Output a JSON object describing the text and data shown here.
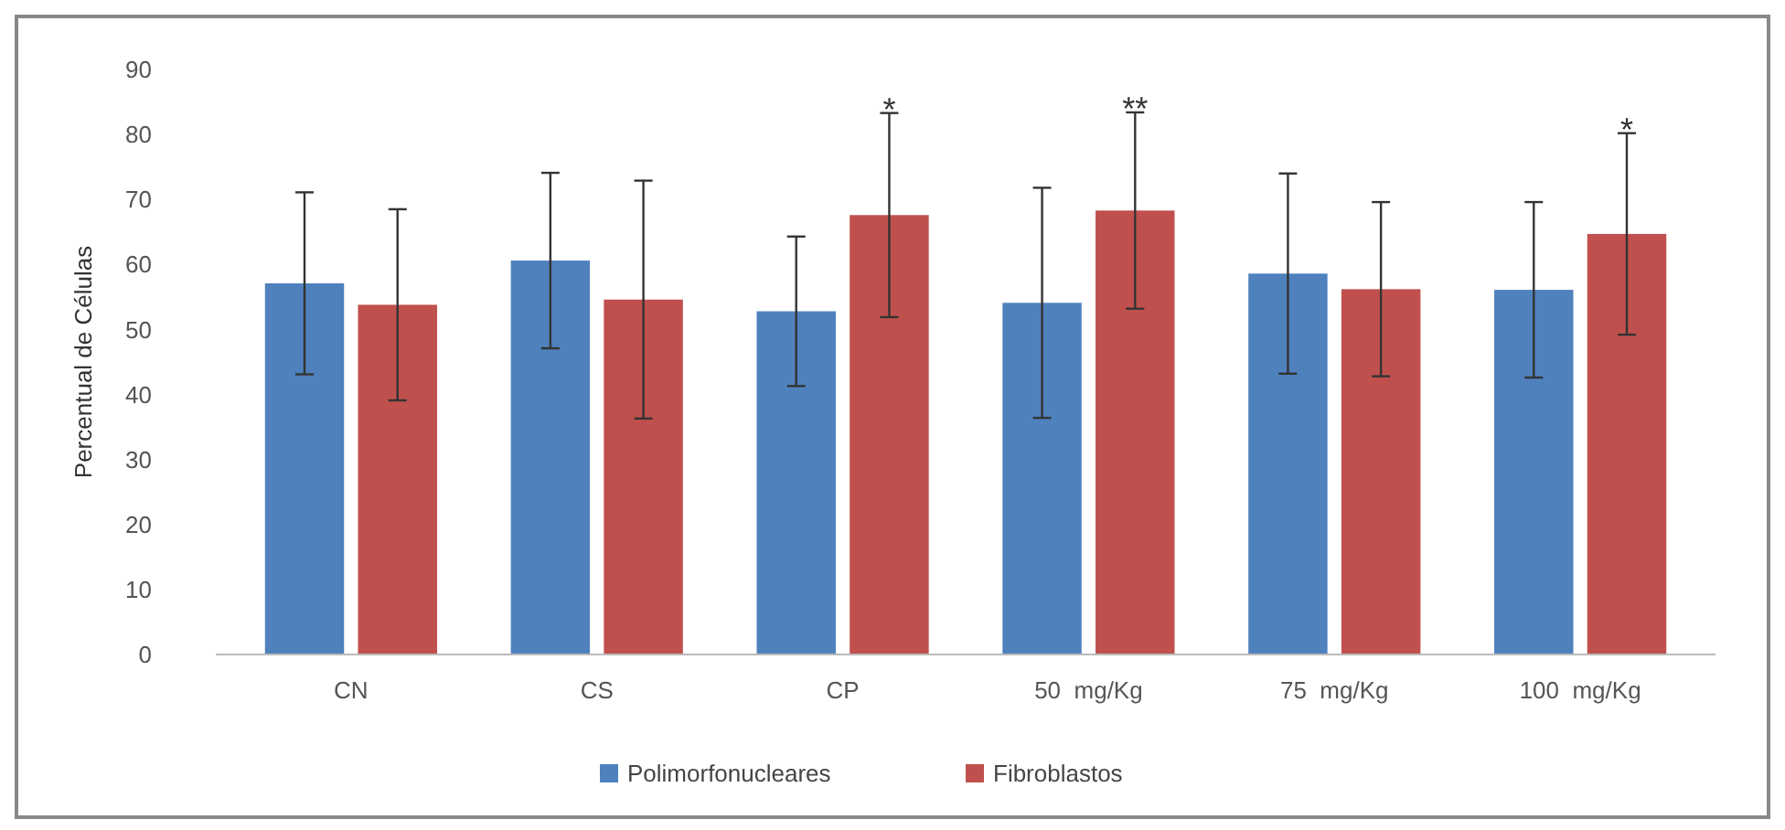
{
  "chart_data": {
    "type": "bar",
    "ylabel": "Percentual de Células",
    "categories": [
      "CN",
      "CS",
      "CP",
      "50  mg/Kg",
      "75  mg/Kg",
      "100  mg/Kg"
    ],
    "series": [
      {
        "name": "Polimorfonucleares",
        "color": "#4f81bd",
        "values": [
          57.1,
          60.6,
          52.8,
          54.1,
          58.6,
          56.1
        ],
        "errors": [
          14,
          13.5,
          11.5,
          17.7,
          15.4,
          13.5
        ]
      },
      {
        "name": "Fibroblastos",
        "color": "#c0504d",
        "values": [
          53.8,
          54.6,
          67.6,
          68.3,
          56.2,
          64.7
        ],
        "errors": [
          14.7,
          18.3,
          15.7,
          15.1,
          13.4,
          15.5
        ]
      }
    ],
    "ylim": [
      0,
      90
    ],
    "yticks": [
      0,
      10,
      20,
      30,
      40,
      50,
      60,
      70,
      80,
      90
    ],
    "legend": "bottom",
    "annotations": [
      {
        "text": "*",
        "x": "CP",
        "y": 67.6
      },
      {
        "text": "**",
        "x": "50  mg/Kg",
        "y": 68.3
      },
      {
        "text": "*",
        "x": "100  mg/Kg",
        "y": 64.7
      }
    ]
  }
}
